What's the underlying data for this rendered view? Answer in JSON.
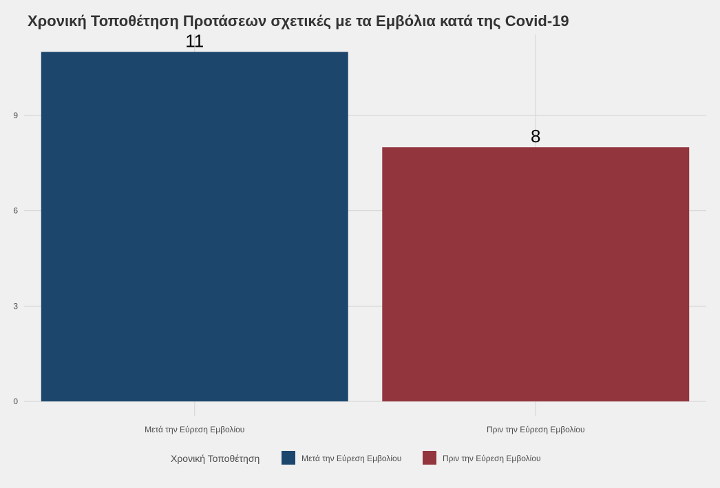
{
  "chart_data": {
    "type": "bar",
    "title": "Χρονική Τοποθέτηση Προτάσεων σχετικές με τα Εμβόλια κατά της Covid-19",
    "xlabel": "",
    "ylabel": "",
    "categories": [
      "Μετά την Εύρεση Εμβολίου",
      "Πριν την Εύρεση Εμβολίου"
    ],
    "values": [
      11,
      8
    ],
    "data_labels": [
      "11",
      "8"
    ],
    "colors": [
      "#1c466c",
      "#92353d"
    ],
    "ylim": [
      0,
      11
    ],
    "yticks": [
      0,
      3,
      6,
      9
    ],
    "ytick_labels": [
      "0",
      "3",
      "6",
      "9"
    ],
    "grid": true,
    "legend": {
      "title": "Χρονική Τοποθέτηση",
      "position": "bottom",
      "entries": [
        "Μετά την Εύρεση Εμβολίου",
        "Πριν την Εύρεση Εμβολίου"
      ]
    }
  },
  "colors": {
    "background": "#f0f0f0",
    "grid": "#d2d2d2",
    "title_text": "#333333",
    "axis_text": "#4d4d4d",
    "data_label_text": "#000000"
  }
}
